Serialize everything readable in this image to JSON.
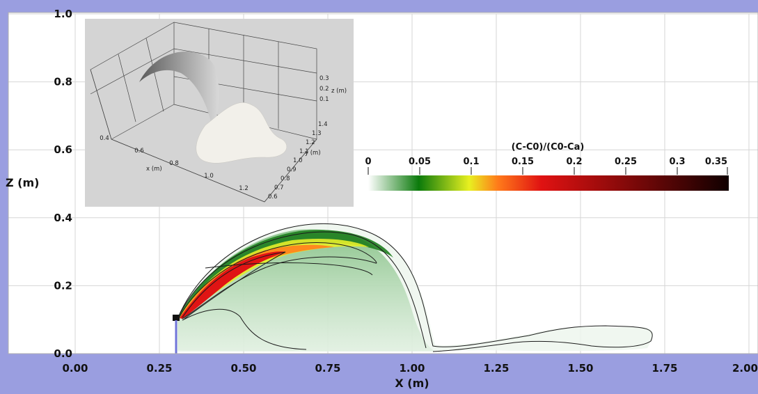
{
  "chart_data": {
    "type": "heatmap",
    "xlabel": "X (m)",
    "ylabel": "Z (m)",
    "xlim": [
      0.0,
      2.0
    ],
    "ylim": [
      0.0,
      1.0
    ],
    "x_ticks": [
      "0.00",
      "0.25",
      "0.50",
      "0.75",
      "1.00",
      "1.25",
      "1.50",
      "1.75",
      "2.00"
    ],
    "y_ticks": [
      "0.0",
      "0.2",
      "0.4",
      "0.6",
      "0.8",
      "1.0"
    ],
    "grid": true,
    "colorbar": {
      "title": "(C-C0)/(C0-Ca)",
      "range": [
        0,
        0.35
      ],
      "ticks": [
        "0",
        "0.05",
        "0.1",
        "0.15",
        "0.2",
        "0.25",
        "0.3",
        "0.35"
      ],
      "colors": [
        "#ffffff",
        "#0b7a0b",
        "#e8f020",
        "#ff7a1a",
        "#e01212",
        "#8a0a0a",
        "#100000"
      ]
    },
    "jet_source_x": 0.3,
    "jet_nozzle_z": 0.1,
    "contour_levels": [
      0.01,
      0.05,
      0.1,
      0.15,
      0.2
    ]
  },
  "inset": {
    "x_label": "x (m)",
    "y_label": "y (m)",
    "z_label": "z (m)",
    "x_ticks": [
      "0.4",
      "0.6",
      "0.8",
      "1.0",
      "1.2"
    ],
    "y_ticks": [
      "0.6",
      "0.7",
      "0.8",
      "0.9",
      "1.0",
      "1.1",
      "1.2",
      "1.3",
      "1.4"
    ],
    "z_ticks": [
      "0.1",
      "0.2",
      "0.3"
    ]
  }
}
